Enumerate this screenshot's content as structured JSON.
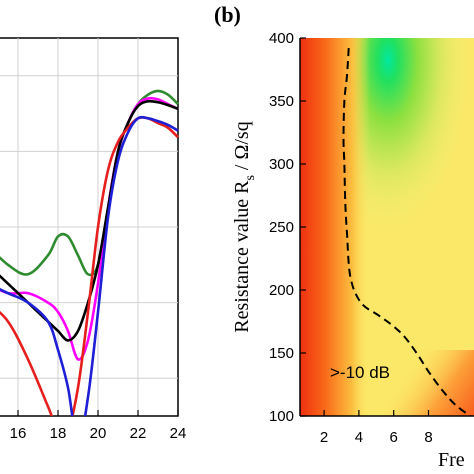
{
  "chart_data": [
    {
      "type": "line",
      "panel": "a",
      "title": "",
      "xlabel": "",
      "ylabel": "",
      "xlim": [
        15,
        24
      ],
      "ylim": [
        -32,
        8
      ],
      "grid": true,
      "x_ticks": [
        "16",
        "18",
        "20",
        "22",
        "24"
      ],
      "y_ticks": [],
      "series": [
        {
          "color": "#2e8b2e",
          "x": [
            14.5,
            15.5,
            16.5,
            17.5,
            18,
            18.5,
            19,
            19.5,
            20,
            20.5,
            21,
            21.5,
            22,
            22.5,
            23,
            23.5,
            24
          ],
          "y": [
            -14,
            -16,
            -17,
            -15,
            -13,
            -13,
            -15,
            -17,
            -16,
            -10,
            -4,
            -1,
            1,
            2,
            2.4,
            2,
            1
          ]
        },
        {
          "color": "#ff00ff",
          "x": [
            14.5,
            15.5,
            16.5,
            17.5,
            18,
            18.5,
            19,
            19.5,
            20,
            20.5,
            21,
            21.5,
            22,
            22.5,
            23,
            23.5,
            24
          ],
          "y": [
            -18,
            -19,
            -19,
            -20,
            -21,
            -23,
            -26,
            -24,
            -18,
            -10,
            -4,
            -1,
            1,
            1.6,
            1.5,
            1,
            0.5
          ]
        },
        {
          "color": "#000000",
          "x": [
            14.5,
            15.5,
            16.5,
            17.5,
            18,
            18.5,
            19,
            19.5,
            20,
            20.5,
            21,
            21.5,
            22,
            22.5,
            23,
            23.5,
            24
          ],
          "y": [
            -16,
            -18,
            -20,
            -22,
            -23,
            -24,
            -23,
            -20,
            -16,
            -10,
            -4,
            -1,
            0.8,
            1.3,
            1.2,
            0.9,
            0.5
          ]
        },
        {
          "color": "#e61e1e",
          "x": [
            14.5,
            15.5,
            16.5,
            17.5,
            18,
            18.5,
            19,
            19.5,
            20,
            20.5,
            21,
            21.5,
            22,
            22.5,
            23,
            23.5,
            24
          ],
          "y": [
            -20,
            -22,
            -26,
            -31,
            -33.5,
            -33.5,
            -29,
            -21,
            -12,
            -6,
            -3,
            -1.5,
            -0.5,
            -0.5,
            -1,
            -1.5,
            -2.5
          ]
        },
        {
          "color": "#1f1fd6",
          "x": [
            14.5,
            15.5,
            16.5,
            17.5,
            18,
            18.5,
            19,
            19.5,
            20,
            20.5,
            21,
            21.5,
            22,
            22.5,
            23,
            23.5,
            24
          ],
          "y": [
            -18,
            -19,
            -20,
            -22,
            -25,
            -29,
            -35,
            -30,
            -21,
            -11,
            -5,
            -2,
            -0.5,
            -0.5,
            -0.8,
            -1.2,
            -1.8
          ]
        }
      ]
    },
    {
      "type": "heatmap",
      "panel": "b",
      "title": "",
      "xlabel": "Fre",
      "ylabel": "Resistance value R_s / Ω/sq",
      "ylabel_main": "Resistance value R",
      "ylabel_sub": "s",
      "ylabel_unit": " / Ω/sq",
      "xlim": [
        0.5,
        10.5
      ],
      "ylim": [
        100,
        400
      ],
      "x_ticks": [
        "2",
        "4",
        "6",
        "8"
      ],
      "y_ticks": [
        "100",
        "150",
        "200",
        "250",
        "300",
        "350",
        "400"
      ],
      "annotation": ">-10 dB",
      "contour_minus10dB": {
        "x": [
          3.3,
          3.2,
          3.05,
          3.0,
          3.05,
          3.1,
          3.2,
          3.4,
          4.0,
          5.0,
          5.8,
          6.5,
          7.2,
          7.9,
          8.7,
          9.5,
          10.5
        ],
        "y": [
          392,
          370,
          350,
          320,
          300,
          270,
          245,
          210,
          190,
          180,
          172,
          163,
          150,
          135,
          120,
          108,
          98
        ]
      }
    }
  ],
  "labels": {
    "panel_b": "(b)",
    "annotation": ">-10 dB"
  }
}
